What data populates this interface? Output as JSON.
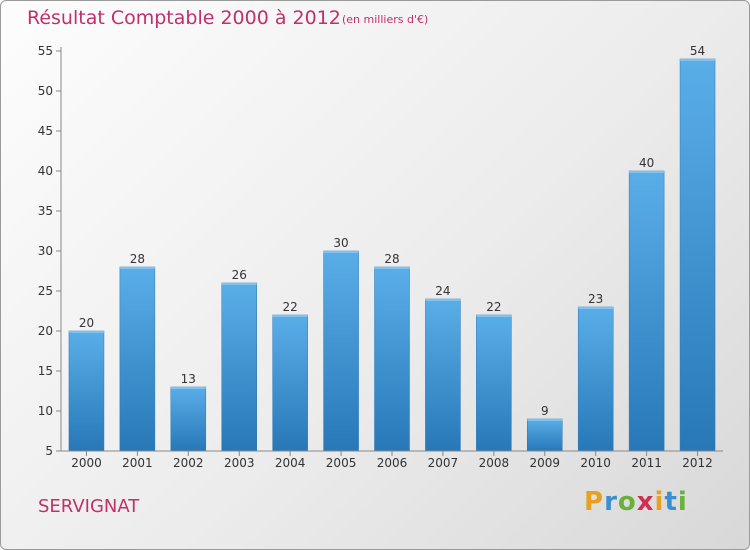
{
  "header": {
    "title": "Résultat Comptable 2000 à 2012",
    "subtitle": "(en milliers d'€)"
  },
  "footer": {
    "place": "SERVIGNAT",
    "brand": "Proxiti"
  },
  "colors": {
    "title": "#c0306a",
    "bar_top": "#5aaee8",
    "bar_bottom": "#2878b8"
  },
  "chart_data": {
    "type": "bar",
    "title": "Résultat Comptable 2000 à 2012",
    "subtitle": "(en milliers d'€)",
    "categories": [
      "2000",
      "2001",
      "2002",
      "2003",
      "2004",
      "2005",
      "2006",
      "2007",
      "2008",
      "2009",
      "2010",
      "2011",
      "2012"
    ],
    "values": [
      20,
      28,
      13,
      26,
      22,
      30,
      28,
      24,
      22,
      9,
      23,
      40,
      54
    ],
    "ylim": [
      5,
      55
    ],
    "yticks": [
      5,
      10,
      15,
      20,
      25,
      30,
      35,
      40,
      45,
      50,
      55
    ],
    "grid": false,
    "data_labels": true
  }
}
